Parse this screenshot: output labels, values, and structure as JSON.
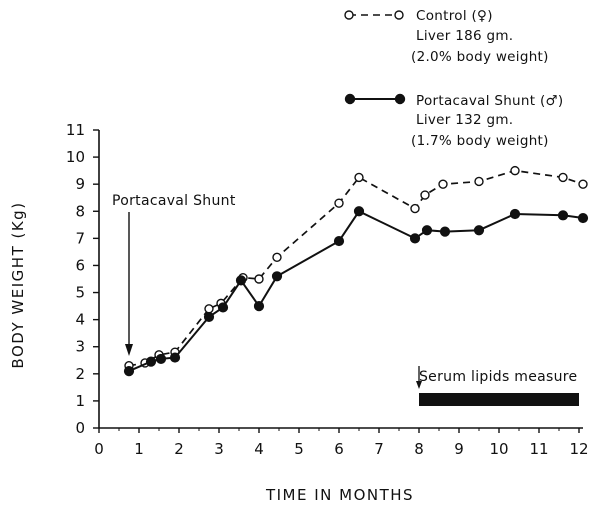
{
  "chart_data": {
    "type": "line",
    "xlabel": "TIME IN MONTHS",
    "ylabel": "BODY WEIGHT (Kg)",
    "xlim": [
      0,
      12
    ],
    "ylim": [
      0,
      11
    ],
    "x_ticks": [
      "0",
      "1",
      "2",
      "3",
      "4",
      "5",
      "6",
      "7",
      "8",
      "9",
      "10",
      "11",
      "12"
    ],
    "y_ticks": [
      "0",
      "1",
      "2",
      "3",
      "4",
      "5",
      "6",
      "7",
      "8",
      "9",
      "10",
      "11"
    ],
    "grid": false,
    "legend_position": "top-right",
    "series": [
      {
        "name": "Control (♀)",
        "detail_lines": [
          "Liver 186 gm.",
          "(2.0% body weight)"
        ],
        "style": "dashed-open-circle",
        "x": [
          0.75,
          1.15,
          1.5,
          1.9,
          2.75,
          3.05,
          3.6,
          4.0,
          4.45,
          6.0,
          6.5,
          7.9,
          8.15,
          8.6,
          9.5,
          10.4,
          11.6,
          12.1
        ],
        "y": [
          2.3,
          2.4,
          2.7,
          2.8,
          4.4,
          4.6,
          5.55,
          5.5,
          6.3,
          8.3,
          9.25,
          8.1,
          8.6,
          9.0,
          9.1,
          9.5,
          9.25,
          9.0
        ]
      },
      {
        "name": "Portacaval Shunt (♂)",
        "detail_lines": [
          "Liver 132 gm.",
          "(1.7% body weight)"
        ],
        "style": "solid-filled-circle",
        "x": [
          0.75,
          1.3,
          1.55,
          1.9,
          2.75,
          3.1,
          3.55,
          4.0,
          4.45,
          6.0,
          6.5,
          7.9,
          8.2,
          8.65,
          9.5,
          10.4,
          11.6,
          12.1
        ],
        "y": [
          2.1,
          2.45,
          2.55,
          2.6,
          4.1,
          4.45,
          5.45,
          4.5,
          5.6,
          6.9,
          8.0,
          7.0,
          7.3,
          7.25,
          7.3,
          7.9,
          7.85,
          7.75
        ]
      }
    ],
    "annotations": {
      "shunt_label": "Portacaval Shunt",
      "shunt_x": 0.75,
      "serum_label": "Serum lipids measure",
      "serum_range": [
        8,
        12
      ]
    },
    "colors": {
      "ink": "#111111",
      "background": "#ffffff"
    }
  }
}
